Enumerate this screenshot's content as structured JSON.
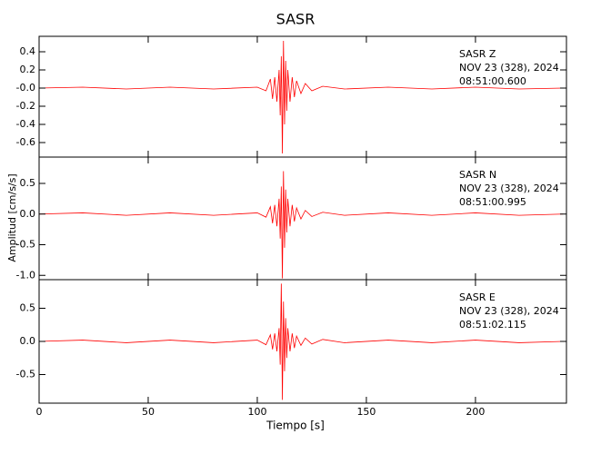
{
  "chart_data": [
    {
      "type": "line",
      "title": "SASR",
      "annotations": [
        "SASR   Z",
        "NOV 23 (328), 2024",
        "08:51:00.600"
      ],
      "xlim": [
        0,
        241.7
      ],
      "xticks": [
        0,
        50,
        100,
        150,
        200
      ],
      "show_xtick_labels": false,
      "ylim": [
        -0.76,
        0.57
      ],
      "yticks": [
        0.4,
        0.2,
        {
          "value": 0,
          "label": "-0.0"
        },
        -0.2,
        -0.4,
        -0.6
      ],
      "x": [
        0,
        20,
        40,
        60,
        80,
        100,
        104,
        106,
        107,
        108,
        109,
        110,
        110.5,
        111,
        111.5,
        112,
        112.5,
        113,
        113.5,
        114,
        115,
        116,
        117,
        118,
        120,
        122,
        125,
        130,
        140,
        160,
        180,
        200,
        220,
        240
      ],
      "series": [
        {
          "color": "#ff0000",
          "values": [
            0,
            0.01,
            -0.01,
            0.01,
            -0.01,
            0.01,
            -0.03,
            0.1,
            -0.12,
            0.12,
            -0.15,
            0.2,
            -0.3,
            0.35,
            -0.72,
            0.52,
            -0.4,
            0.3,
            -0.25,
            0.2,
            -0.15,
            0.12,
            -0.1,
            0.08,
            -0.06,
            0.05,
            -0.03,
            0.02,
            -0.01,
            0.01,
            -0.01,
            0.01,
            -0.01,
            0
          ]
        }
      ]
    },
    {
      "type": "line",
      "ylabel": "Amplitud [cm/s/s]",
      "annotations": [
        "SASR   N",
        "NOV 23 (328), 2024",
        "08:51:00.995"
      ],
      "xlim": [
        0,
        241.7
      ],
      "xticks": [
        0,
        50,
        100,
        150,
        200
      ],
      "show_xtick_labels": false,
      "ylim": [
        -1.07,
        0.93
      ],
      "yticks": [
        0.5,
        {
          "value": 0,
          "label": "0.0"
        },
        -0.5,
        {
          "value": -1,
          "label": "-1.0"
        }
      ],
      "x": [
        0,
        20,
        40,
        60,
        80,
        100,
        104,
        106,
        107,
        108,
        109,
        110,
        110.5,
        111,
        111.5,
        112,
        112.5,
        113,
        113.5,
        114,
        115,
        116,
        117,
        118,
        120,
        122,
        125,
        130,
        140,
        160,
        180,
        200,
        220,
        240
      ],
      "series": [
        {
          "color": "#ff0000",
          "values": [
            0,
            0.02,
            -0.02,
            0.02,
            -0.02,
            0.02,
            -0.05,
            0.12,
            -0.15,
            0.15,
            -0.2,
            0.25,
            -0.4,
            0.45,
            -1.05,
            0.7,
            -0.55,
            0.4,
            -0.3,
            0.25,
            -0.2,
            0.15,
            -0.12,
            0.1,
            -0.08,
            0.06,
            -0.04,
            0.03,
            -0.02,
            0.02,
            -0.02,
            0.02,
            -0.02,
            0
          ]
        }
      ]
    },
    {
      "type": "line",
      "xlabel": "Tiempo [s]",
      "annotations": [
        "SASR   E",
        "NOV 23 (328), 2024",
        "08:51:02.115"
      ],
      "xlim": [
        0,
        241.7
      ],
      "xticks": [
        0,
        50,
        100,
        150,
        200
      ],
      "show_xtick_labels": true,
      "ylim": [
        -0.93,
        0.93
      ],
      "yticks": [
        0.5,
        {
          "value": 0,
          "label": "0.0"
        },
        -0.5
      ],
      "x": [
        0,
        20,
        40,
        60,
        80,
        100,
        104,
        106,
        107,
        108,
        109,
        110,
        110.5,
        111,
        111.5,
        112,
        112.5,
        113,
        113.5,
        114,
        115,
        116,
        117,
        118,
        120,
        122,
        125,
        130,
        140,
        160,
        180,
        200,
        220,
        240
      ],
      "series": [
        {
          "color": "#ff0000",
          "values": [
            0,
            0.02,
            -0.02,
            0.02,
            -0.02,
            0.02,
            -0.05,
            0.1,
            -0.12,
            0.12,
            -0.15,
            0.2,
            -0.35,
            0.87,
            -0.88,
            0.6,
            -0.45,
            0.35,
            -0.25,
            0.2,
            -0.15,
            0.12,
            -0.1,
            0.08,
            -0.06,
            0.05,
            -0.04,
            0.03,
            -0.02,
            0.02,
            -0.02,
            0.02,
            -0.02,
            0
          ]
        }
      ]
    }
  ]
}
